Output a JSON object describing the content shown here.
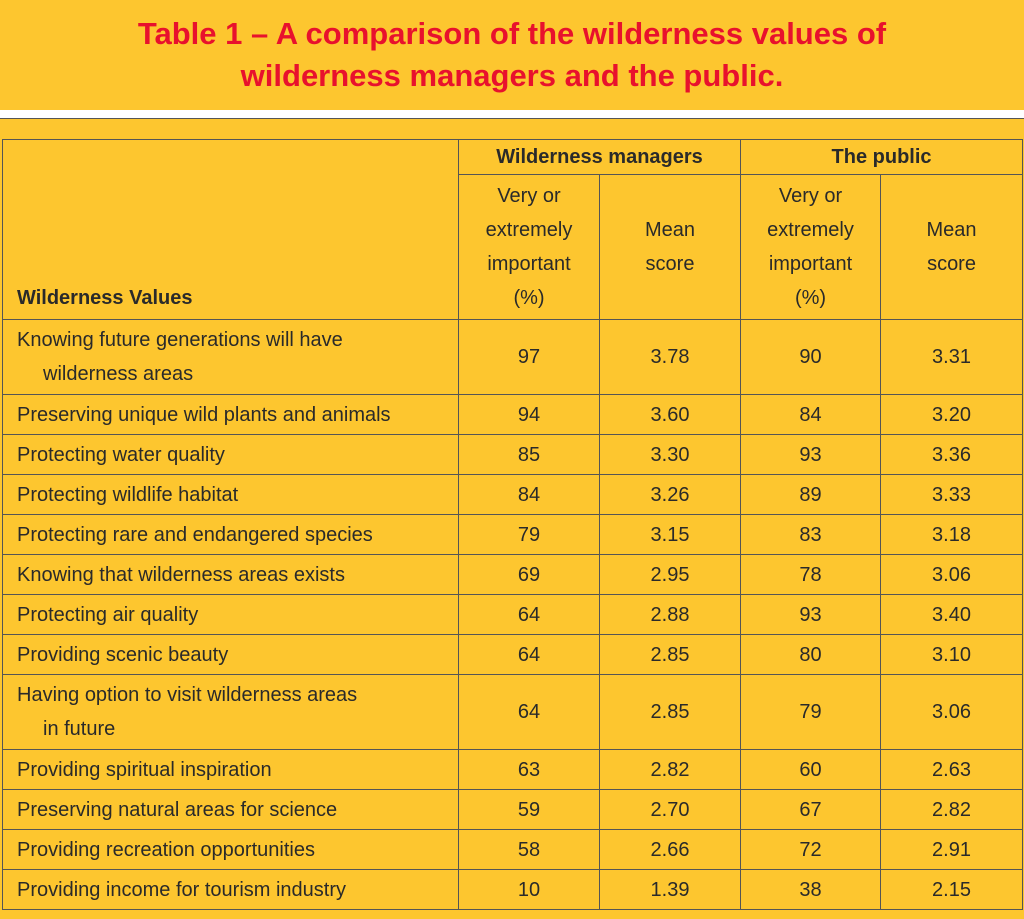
{
  "title_lines": [
    "Table 1 – A comparison of the wilderness values of",
    "wilderness managers and the public."
  ],
  "table": {
    "row_header": "Wilderness Values",
    "groups": [
      "Wilderness managers",
      "The public"
    ],
    "subheaders": [
      [
        "Very or",
        "extremely",
        "important",
        "(%)"
      ],
      [
        "Mean",
        "score"
      ],
      [
        "Very or",
        "extremely",
        "important",
        "(%)"
      ],
      [
        "Mean",
        "score"
      ]
    ],
    "rows": [
      {
        "label": [
          "Knowing future generations will have",
          "wilderness areas"
        ],
        "values": [
          "97",
          "3.78",
          "90",
          "3.31"
        ]
      },
      {
        "label": [
          "Preserving unique wild plants and animals"
        ],
        "values": [
          "94",
          "3.60",
          "84",
          "3.20"
        ]
      },
      {
        "label": [
          "Protecting water quality"
        ],
        "values": [
          "85",
          "3.30",
          "93",
          "3.36"
        ]
      },
      {
        "label": [
          "Protecting wildlife habitat"
        ],
        "values": [
          "84",
          "3.26",
          "89",
          "3.33"
        ]
      },
      {
        "label": [
          "Protecting rare and endangered species"
        ],
        "values": [
          "79",
          "3.15",
          "83",
          "3.18"
        ]
      },
      {
        "label": [
          "Knowing that wilderness areas exists"
        ],
        "values": [
          "69",
          "2.95",
          "78",
          "3.06"
        ]
      },
      {
        "label": [
          "Protecting air quality"
        ],
        "values": [
          "64",
          "2.88",
          "93",
          "3.40"
        ]
      },
      {
        "label": [
          "Providing scenic beauty"
        ],
        "values": [
          "64",
          "2.85",
          "80",
          "3.10"
        ]
      },
      {
        "label": [
          "Having option to visit wilderness areas",
          "in future"
        ],
        "values": [
          "64",
          "2.85",
          "79",
          "3.06"
        ]
      },
      {
        "label": [
          "Providing spiritual inspiration"
        ],
        "values": [
          "63",
          "2.82",
          "60",
          "2.63"
        ]
      },
      {
        "label": [
          "Preserving natural areas for science"
        ],
        "values": [
          "59",
          "2.70",
          "67",
          "2.82"
        ]
      },
      {
        "label": [
          "Providing recreation opportunities"
        ],
        "values": [
          "58",
          "2.66",
          "72",
          "2.91"
        ]
      },
      {
        "label": [
          "Providing income for tourism industry"
        ],
        "values": [
          "10",
          "1.39",
          "38",
          "2.15"
        ]
      }
    ]
  }
}
